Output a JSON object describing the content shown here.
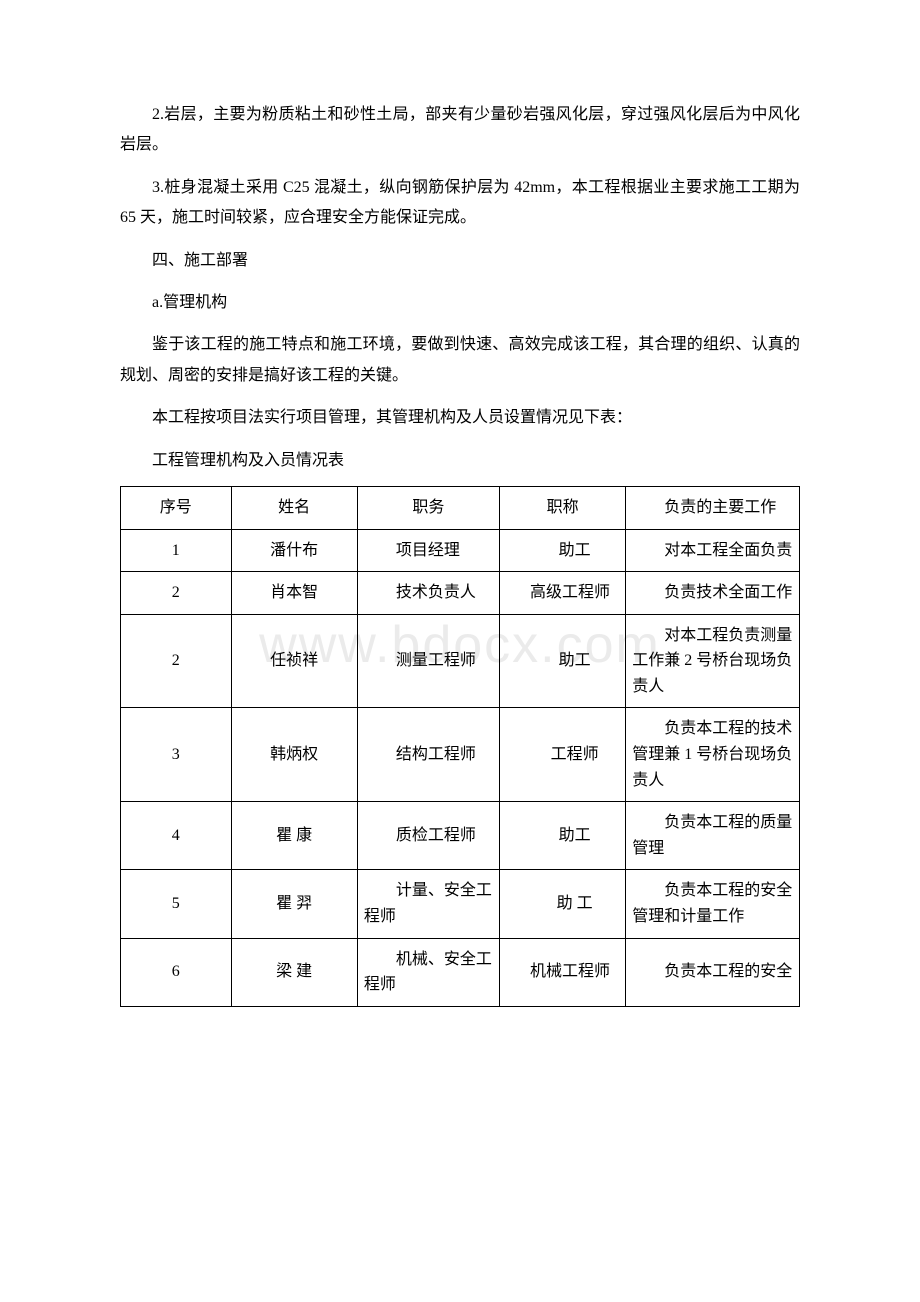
{
  "watermark": "www.bdocx.com",
  "paragraphs": {
    "p1": "2.岩层，主要为粉质粘土和砂性土局，部夹有少量砂岩强风化层，穿过强风化层后为中风化岩层。",
    "p2": "3.桩身混凝土采用 C25 混凝土，纵向钢筋保护层为 42mm，本工程根据业主要求施工工期为 65 天，施工时间较紧，应合理安全方能保证完成。",
    "p3": "四、施工部署",
    "p4": "a.管理机构",
    "p5": "鉴于该工程的施工特点和施工环境，要做到快速、高效完成该工程，其合理的组织、认真的规划、周密的安排是搞好该工程的关键。",
    "p6": "本工程按项目法实行项目管理，其管理机构及人员设置情况见下表：",
    "caption": "工程管理机构及入员情况表"
  },
  "table": {
    "headers": {
      "seq": "序号",
      "name": "姓名",
      "position": "职务",
      "title": "职称",
      "resp": "负责的主要工作"
    },
    "rows": [
      {
        "seq": "1",
        "name": "潘什布",
        "position": "项目经理",
        "title": "助工",
        "resp": "对本工程全面负责"
      },
      {
        "seq": "2",
        "name": "肖本智",
        "position": "技术负责人",
        "title": "高级工程师",
        "resp": "负责技术全面工作"
      },
      {
        "seq": "2",
        "name": "任祯祥",
        "position": "测量工程师",
        "title": "助工",
        "resp": "对本工程负责测量工作兼 2 号桥台现场负责人"
      },
      {
        "seq": "3",
        "name": "韩炳权",
        "position": "结构工程师",
        "title": "工程师",
        "resp": "负责本工程的技术管理兼 1 号桥台现场负责人"
      },
      {
        "seq": "4",
        "name": "瞿 康",
        "position": "质检工程师",
        "title": "助工",
        "resp": "负责本工程的质量管理"
      },
      {
        "seq": "5",
        "name": "瞿 羿",
        "position": "计量、安全工程师",
        "title": "助 工",
        "resp": "负责本工程的安全管理和计量工作"
      },
      {
        "seq": "6",
        "name": "梁 建",
        "position": "机械、安全工程师",
        "title": "机械工程师",
        "resp": "负责本工程的安全"
      }
    ]
  },
  "styles": {
    "background_color": "#ffffff",
    "text_color": "#000000",
    "border_color": "#000000",
    "watermark_color": "#ebebeb",
    "font_size": 16,
    "watermark_font_size": 52
  }
}
